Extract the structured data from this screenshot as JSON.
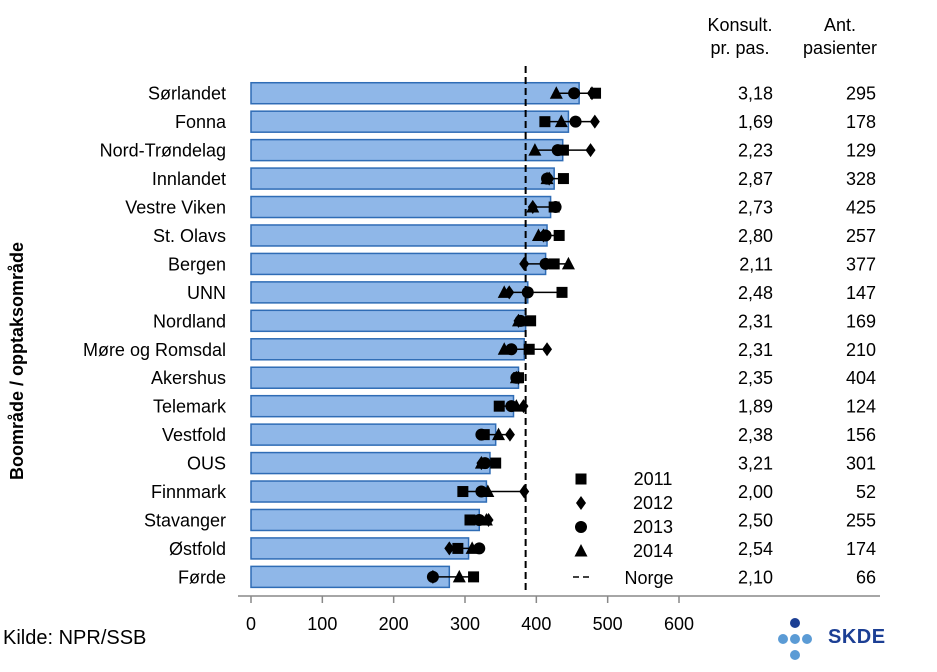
{
  "chart_data": {
    "type": "bar",
    "ylabel": "Boområde / opptaksområde",
    "categories": [
      "Sørlandet",
      "Fonna",
      "Nord-Trøndelag",
      "Innlandet",
      "Vestre Viken",
      "St. Olavs",
      "Bergen",
      "UNN",
      "Nordland",
      "Møre og Romsdal",
      "Akershus",
      "Telemark",
      "Vestfold",
      "OUS",
      "Finnmark",
      "Stavanger",
      "Østfold",
      "Førde"
    ],
    "bar_values": [
      460,
      445,
      437,
      425,
      420,
      415,
      413,
      388,
      385,
      383,
      375,
      368,
      343,
      335,
      330,
      320,
      305,
      278
    ],
    "series": [
      {
        "name": "2011",
        "marker": "square",
        "values": [
          483,
          412,
          438,
          438,
          425,
          432,
          425,
          436,
          392,
          390,
          375,
          348,
          327,
          343,
          297,
          307,
          290,
          312
        ]
      },
      {
        "name": "2012",
        "marker": "diamond",
        "values": [
          478,
          482,
          476,
          418,
          395,
          410,
          383,
          362,
          375,
          415,
          375,
          382,
          363,
          323,
          383,
          333,
          278,
          255
        ]
      },
      {
        "name": "2013",
        "marker": "circle",
        "values": [
          453,
          455,
          430,
          415,
          427,
          413,
          413,
          388,
          378,
          365,
          372,
          365,
          323,
          328,
          323,
          320,
          320,
          255
        ]
      },
      {
        "name": "2014",
        "marker": "triangle",
        "values": [
          428,
          435,
          398,
          415,
          395,
          403,
          445,
          355,
          375,
          355,
          372,
          372,
          347,
          323,
          332,
          330,
          310,
          292
        ]
      }
    ],
    "reference_line": {
      "name": "Norge",
      "value": 385
    },
    "xlim": [
      0,
      600
    ],
    "xticks": [
      0,
      100,
      200,
      300,
      400,
      500,
      600
    ],
    "table_headers": [
      [
        "Konsult.",
        "pr. pas."
      ],
      [
        "Ant.",
        "pasienter"
      ]
    ],
    "konsult_pr_pas": [
      "3,18",
      "1,69",
      "2,23",
      "2,87",
      "2,73",
      "2,80",
      "2,11",
      "2,48",
      "2,31",
      "2,31",
      "2,35",
      "1,89",
      "2,38",
      "3,21",
      "2,00",
      "2,50",
      "2,54",
      "2,10"
    ],
    "ant_pasienter": [
      "295",
      "178",
      "129",
      "328",
      "425",
      "257",
      "377",
      "147",
      "169",
      "210",
      "404",
      "124",
      "156",
      "301",
      "52",
      "255",
      "174",
      "66"
    ],
    "colors": {
      "bar_fill": "#8fb7e8",
      "bar_stroke": "#2f6cb5",
      "marker": "#000000"
    }
  },
  "source": "Kilde: NPR/SSB",
  "logo": {
    "text": "SKDE"
  }
}
